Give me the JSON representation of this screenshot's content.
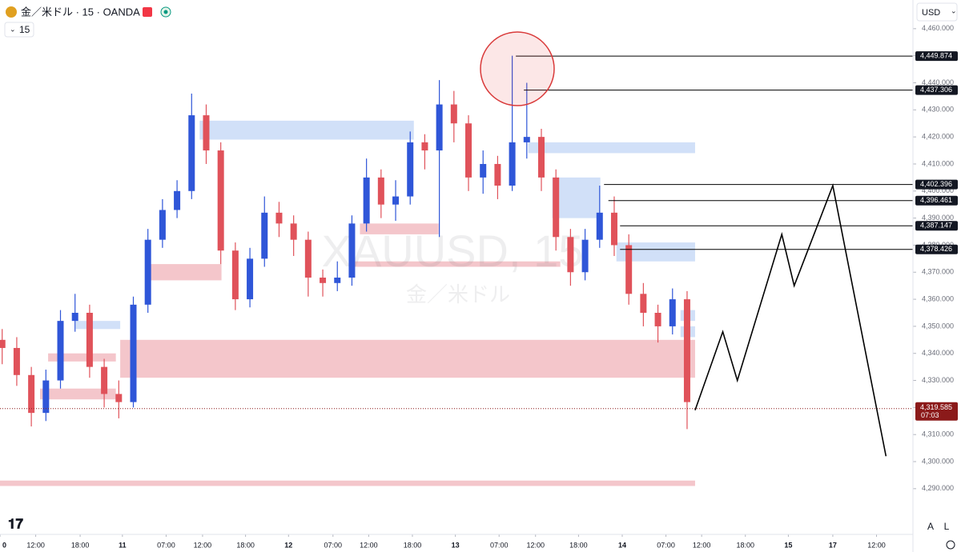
{
  "header": {
    "symbol": "金／米ドル · 15 · OANDA",
    "interval": "15",
    "currency": "USD"
  },
  "footer": {
    "auto": "A",
    "log": "L"
  },
  "chart_data": {
    "type": "candlestick",
    "watermark": {
      "symbol": "XAUUSD, 15",
      "name": "金／米ドル"
    },
    "up_color": "#2f56d8",
    "down_color": "#e0525a",
    "xlim": [
      -0.3,
      125
    ],
    "ylim": [
      4273.1,
      4470.6
    ],
    "xticks": [
      {
        "value": -0.3,
        "label": "0"
      },
      {
        "value": 4.6,
        "label": "12:00"
      },
      {
        "value": 10.7,
        "label": "18:00"
      },
      {
        "value": 16.5,
        "label": "11"
      },
      {
        "value": 22.5,
        "label": "07:00"
      },
      {
        "value": 27.5,
        "label": "12:00"
      },
      {
        "value": 33.4,
        "label": "18:00"
      },
      {
        "value": 39.3,
        "label": "12"
      },
      {
        "value": 45.4,
        "label": "07:00"
      },
      {
        "value": 50.3,
        "label": "12:00"
      },
      {
        "value": 56.3,
        "label": "18:00"
      },
      {
        "value": 62.2,
        "label": "13"
      },
      {
        "value": 68.2,
        "label": "07:00"
      },
      {
        "value": 73.2,
        "label": "12:00"
      },
      {
        "value": 79.1,
        "label": "18:00"
      },
      {
        "value": 85.1,
        "label": "14"
      },
      {
        "value": 91.1,
        "label": "07:00"
      },
      {
        "value": 96,
        "label": "12:00"
      },
      {
        "value": 102,
        "label": "18:00"
      },
      {
        "value": 107.9,
        "label": "15"
      },
      {
        "value": 114,
        "label": "17"
      },
      {
        "value": 120,
        "label": "12:00"
      }
    ],
    "yticks": [
      {
        "value": 4460,
        "label": "4,460.000"
      },
      {
        "value": 4450,
        "label": "4,450.000"
      },
      {
        "value": 4440,
        "label": "4,440.000"
      },
      {
        "value": 4430,
        "label": "4,430.000"
      },
      {
        "value": 4420,
        "label": "4,420.000"
      },
      {
        "value": 4410,
        "label": "4,410.000"
      },
      {
        "value": 4400,
        "label": "4,400.000"
      },
      {
        "value": 4390,
        "label": "4,390.000"
      },
      {
        "value": 4380,
        "label": "4,380.000"
      },
      {
        "value": 4370,
        "label": "4,370.000"
      },
      {
        "value": 4360,
        "label": "4,360.000"
      },
      {
        "value": 4350,
        "label": "4,350.000"
      },
      {
        "value": 4340,
        "label": "4,340.000"
      },
      {
        "value": 4330,
        "label": "4,330.000"
      },
      {
        "value": 4320,
        "label": "4,320.000"
      },
      {
        "value": 4310,
        "label": "4,310.000"
      },
      {
        "value": 4300,
        "label": "4,300.000"
      },
      {
        "value": 4290,
        "label": "4,290.000"
      }
    ],
    "x": [
      0,
      2,
      4,
      6,
      8,
      10,
      12,
      14,
      16,
      18,
      20,
      22,
      24,
      26,
      28,
      30,
      32,
      34,
      36,
      38,
      40,
      42,
      44,
      46,
      48,
      50,
      52,
      54,
      56,
      58,
      60,
      62,
      64,
      66,
      68,
      70,
      72,
      74,
      76,
      78,
      80,
      82,
      84,
      86,
      88,
      90,
      92,
      94
    ],
    "open": [
      4345,
      4342,
      4332,
      4318,
      4330,
      4352,
      4355,
      4335,
      4325,
      4322,
      4358,
      4382,
      4393,
      4400,
      4428,
      4415,
      4378,
      4360,
      4375,
      4392,
      4388,
      4382,
      4368,
      4366,
      4368,
      4388,
      4405,
      4395,
      4398,
      4418,
      4415,
      4432,
      4425,
      4405,
      4410,
      4402,
      4418,
      4420,
      4405,
      4383,
      4370,
      4382,
      4392,
      4380,
      4362,
      4355,
      4350,
      4360
    ],
    "high": [
      4349,
      4346,
      4335,
      4334,
      4356,
      4362,
      4358,
      4338,
      4330,
      4361,
      4386,
      4397,
      4404,
      4436,
      4432,
      4418,
      4381,
      4379,
      4398,
      4396,
      4391,
      4385,
      4371,
      4374,
      4391,
      4412,
      4408,
      4404,
      4422,
      4421,
      4441,
      4437,
      4428,
      4415,
      4413,
      4450,
      4440,
      4423,
      4408,
      4386,
      4386,
      4402,
      4398,
      4384,
      4366,
      4358,
      4364,
      4363
    ],
    "low": [
      4336,
      4328,
      4313,
      4315,
      4327,
      4348,
      4331,
      4320,
      4316,
      4320,
      4355,
      4379,
      4390,
      4397,
      4410,
      4373,
      4356,
      4357,
      4372,
      4383,
      4376,
      4361,
      4361,
      4363,
      4365,
      4385,
      4390,
      4389,
      4395,
      4408,
      4383,
      4418,
      4400,
      4399,
      4397,
      4400,
      4412,
      4400,
      4378,
      4365,
      4367,
      4379,
      4376,
      4358,
      4350,
      4344,
      4347,
      4312
    ],
    "close": [
      4342,
      4332,
      4318,
      4330,
      4352,
      4355,
      4335,
      4325,
      4322,
      4358,
      4382,
      4393,
      4400,
      4428,
      4415,
      4378,
      4360,
      4375,
      4392,
      4388,
      4382,
      4368,
      4366,
      4368,
      4388,
      4405,
      4395,
      4398,
      4418,
      4415,
      4432,
      4425,
      4405,
      4410,
      4402,
      4418,
      4420,
      4405,
      4383,
      4370,
      4382,
      4392,
      4380,
      4362,
      4355,
      4350,
      4360,
      4322
    ],
    "zones": [
      {
        "x": [
          27.1,
          56.5
        ],
        "y": [
          4426,
          4419
        ],
        "color": "#c9dbf7"
      },
      {
        "x": [
          72.2,
          95.1
        ],
        "y": [
          4418,
          4414
        ],
        "color": "#c9dbf7"
      },
      {
        "x": [
          75.5,
          82.1
        ],
        "y": [
          4405,
          4390
        ],
        "color": "#c9dbf7"
      },
      {
        "x": [
          84.3,
          95.1
        ],
        "y": [
          4381,
          4374
        ],
        "color": "#c9dbf7"
      },
      {
        "x": [
          10.1,
          16.2
        ],
        "y": [
          4352,
          4349
        ],
        "color": "#c9dbf7"
      },
      {
        "x": [
          93.1,
          95.1
        ],
        "y": [
          4356,
          4352
        ],
        "color": "#c9dbf7"
      },
      {
        "x": [
          93.1,
          95.1
        ],
        "y": [
          4350,
          4346
        ],
        "color": "#c9dbf7"
      },
      {
        "x": [
          16.2,
          95.1
        ],
        "y": [
          4345,
          4331
        ],
        "color": "#f2bcc2"
      },
      {
        "x": [
          20.2,
          30.1
        ],
        "y": [
          4373,
          4367
        ],
        "color": "#f2bcc2"
      },
      {
        "x": [
          49.1,
          59.9
        ],
        "y": [
          4388,
          4384
        ],
        "color": "#f2bcc2"
      },
      {
        "x": [
          47.7,
          76.6
        ],
        "y": [
          4374,
          4372
        ],
        "color": "#f2bcc2"
      },
      {
        "x": [
          5.2,
          15.6
        ],
        "y": [
          4327,
          4323
        ],
        "color": "#f2bcc2"
      },
      {
        "x": [
          6.3,
          15.6
        ],
        "y": [
          4340,
          4337
        ],
        "color": "#f2bcc2"
      },
      {
        "x": [
          -0.3,
          95.1
        ],
        "y": [
          4293,
          4291
        ],
        "color": "#f2bcc2"
      }
    ],
    "levels": [
      {
        "value": 4449.874,
        "label": "4,449.874",
        "x": 70.5
      },
      {
        "value": 4437.306,
        "label": "4,437.306",
        "x": 71.6
      },
      {
        "value": 4402.396,
        "label": "4,402.396",
        "x": 82.6
      },
      {
        "value": 4396.461,
        "label": "4,396.461",
        "x": 83.2
      },
      {
        "value": 4387.147,
        "label": "4,387.147",
        "x": 84.8
      },
      {
        "value": 4378.426,
        "label": "4,378.426",
        "x": 84.8
      }
    ],
    "last_price": {
      "value": 4319.585,
      "label": "4,319.585",
      "countdown": "07:03",
      "color": "#8b1a1a"
    },
    "projection": {
      "x": [
        95.1,
        98.9,
        100.9,
        107,
        108.7,
        114,
        121.3
      ],
      "values": [
        4319,
        4348,
        4330,
        4384,
        4365,
        4402,
        4302
      ],
      "color": "#000000"
    }
  }
}
